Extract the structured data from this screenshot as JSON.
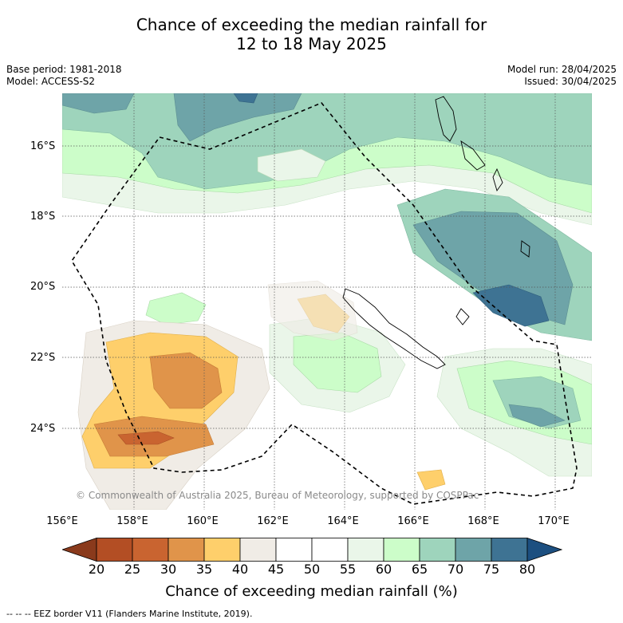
{
  "title_line1": "Chance of exceeding the median rainfall for",
  "title_line2": "12 to 18 May 2025",
  "base_period": "Base period: 1981-2018",
  "model": "Model: ACCESS-S2",
  "model_run": "Model run: 28/04/2025",
  "issued": "Issued: 30/04/2025",
  "copyright": "© Commonwealth of Australia 2025, Bureau of Meteorology, supported by COSPPac",
  "lat_labels": [
    "16°S",
    "18°S",
    "20°S",
    "22°S",
    "24°S"
  ],
  "lon_labels": [
    "156°E",
    "158°E",
    "160°E",
    "162°E",
    "164°E",
    "166°E",
    "168°E",
    "170°E"
  ],
  "colorbar": {
    "ticks": [
      "20",
      "25",
      "30",
      "35",
      "40",
      "45",
      "50",
      "55",
      "60",
      "65",
      "70",
      "75",
      "80"
    ],
    "colors": [
      "#8a3a1c",
      "#b34e24",
      "#c96430",
      "#e0944a",
      "#fecf6b",
      "#f0ece6",
      "#ffffff",
      "#ffffff",
      "#eaf6e9",
      "#ccfdc9",
      "#9ed4bc",
      "#6ea4a8",
      "#3e7393",
      "#1c4f80"
    ],
    "label": "Chance of exceeding median rainfall (%)"
  },
  "footnote": "--  --  -- EEZ border V11 (Flanders Marine Institute, 2019)."
}
